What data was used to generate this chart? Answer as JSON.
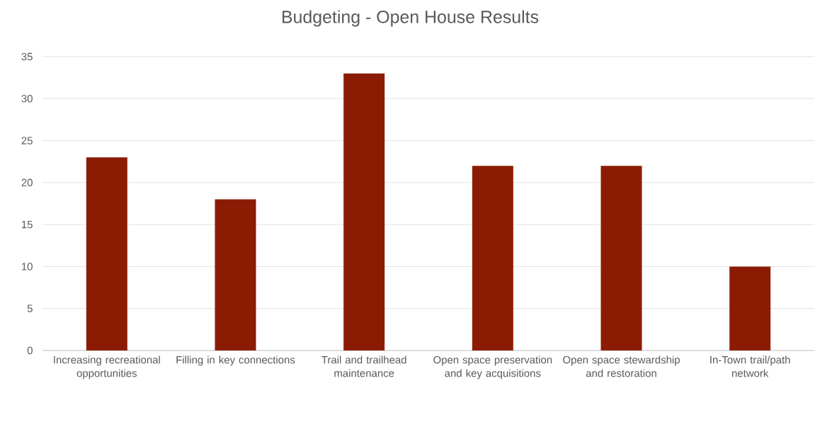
{
  "chart_data": {
    "type": "bar",
    "title": "Budgeting - Open House Results",
    "categories": [
      "Increasing recreational opportunities",
      "Filling in key connections",
      "Trail and trailhead maintenance",
      "Open space preservation and key acquisitions",
      "Open space stewardship and restoration",
      "In-Town trail/path network"
    ],
    "values": [
      23,
      18,
      33,
      22,
      22,
      10
    ],
    "color": "#8b1c03",
    "ylim": [
      0,
      35
    ],
    "yticks": [
      0,
      5,
      10,
      15,
      20,
      25,
      30,
      35
    ],
    "grid": "y"
  }
}
